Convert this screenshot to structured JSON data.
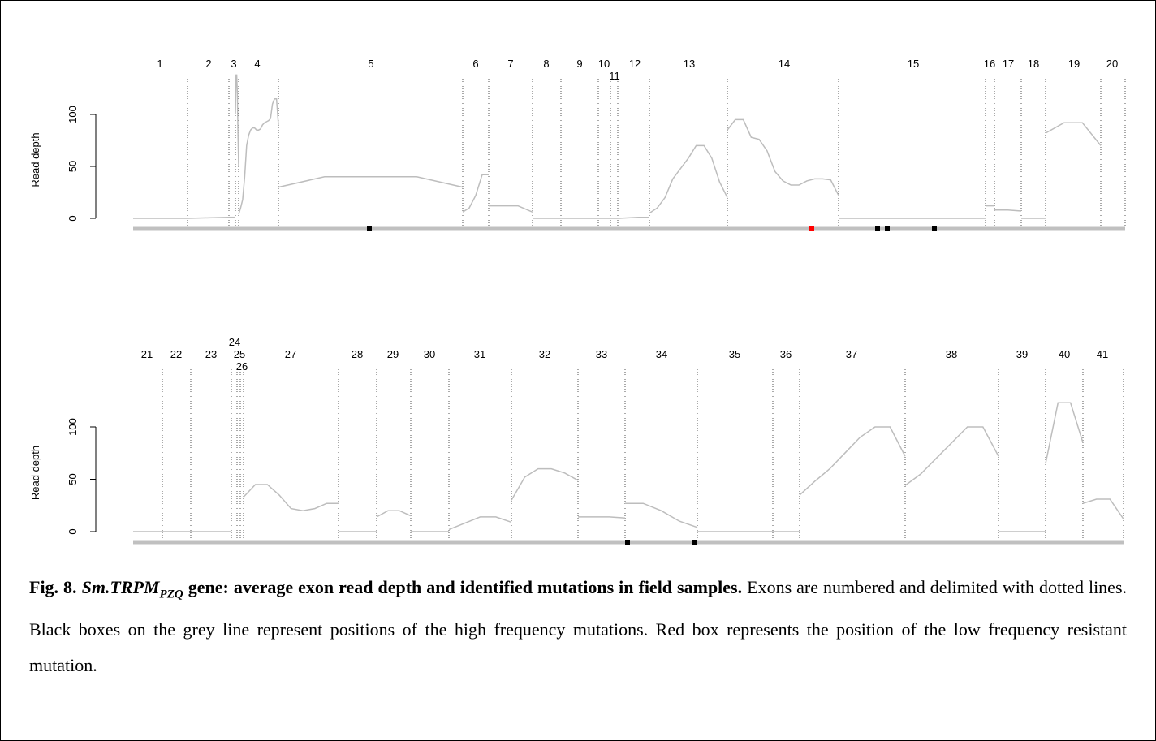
{
  "chart_data": [
    {
      "type": "line",
      "ylabel": "Read depth",
      "ylim": [
        0,
        140
      ],
      "yticks": [
        0,
        50,
        100
      ],
      "grid": false,
      "exons": [
        "1",
        "2",
        "3",
        "4",
        "5",
        "6",
        "7",
        "8",
        "9",
        "10",
        "11",
        "12",
        "13",
        "14",
        "15",
        "16",
        "17",
        "18",
        "19",
        "20"
      ],
      "depth_profile": [
        {
          "exon": "1",
          "points": [
            0,
            0,
            0
          ]
        },
        {
          "exon": "2",
          "points": [
            0,
            0.5,
            1
          ]
        },
        {
          "exon": "3",
          "points": [
            1,
            1
          ]
        },
        {
          "exon": "4",
          "points": [
            100,
            138,
            138,
            120,
            80,
            50
          ]
        },
        {
          "exon": "5",
          "points": [
            4,
            10,
            18,
            40,
            70,
            80,
            85,
            87,
            87,
            85,
            85,
            86,
            90,
            92,
            93,
            94,
            96,
            110,
            115,
            115,
            90
          ]
        },
        {
          "exon": "6",
          "points": [
            30,
            40,
            40,
            40,
            30
          ]
        },
        {
          "exon": "7",
          "points": [
            6,
            10,
            22,
            42,
            42
          ]
        },
        {
          "exon": "8",
          "points": [
            12,
            12,
            12,
            6
          ]
        },
        {
          "exon": "9",
          "points": [
            0,
            0,
            0
          ]
        },
        {
          "exon": "10",
          "points": [
            0,
            0
          ]
        },
        {
          "exon": "11",
          "points": [
            0,
            0
          ]
        },
        {
          "exon": "12",
          "points": [
            0,
            0
          ]
        },
        {
          "exon": "13",
          "points": [
            0,
            0.5,
            1,
            1
          ]
        },
        {
          "exon": "14",
          "points": [
            5,
            10,
            20,
            38,
            48,
            58,
            70,
            70,
            58,
            35,
            20
          ]
        },
        {
          "exon": "15",
          "points": [
            85,
            95,
            95,
            78,
            76,
            65,
            45,
            36,
            32,
            32,
            36,
            38,
            38,
            37,
            22
          ]
        },
        {
          "exon": "16",
          "points": [
            0,
            0
          ]
        },
        {
          "exon": "17",
          "points": [
            12,
            12,
            12
          ]
        },
        {
          "exon": "18",
          "points": [
            8,
            8,
            7
          ]
        },
        {
          "exon": "19",
          "points": [
            0,
            0,
            0
          ]
        },
        {
          "exon": "20",
          "points": [
            82,
            92,
            92,
            70
          ]
        }
      ],
      "mutations": [
        {
          "exon": "5",
          "frequency": "high",
          "color": "#000000"
        },
        {
          "exon": "14",
          "frequency": "low",
          "color": "#ff0000"
        },
        {
          "exon": "15",
          "frequency": "high",
          "color": "#000000"
        },
        {
          "exon": "15",
          "frequency": "high",
          "color": "#000000"
        },
        {
          "exon": "15",
          "frequency": "high",
          "color": "#000000"
        }
      ]
    },
    {
      "type": "line",
      "ylabel": "Read depth",
      "ylim": [
        0,
        140
      ],
      "yticks": [
        0,
        50,
        100
      ],
      "grid": false,
      "exons": [
        "21",
        "22",
        "23",
        "24",
        "25",
        "26",
        "27",
        "28",
        "29",
        "30",
        "31",
        "32",
        "33",
        "34",
        "35",
        "36",
        "37",
        "38",
        "39",
        "40",
        "41"
      ],
      "depth_profile": [
        {
          "exon": "21",
          "points": [
            0,
            0
          ]
        },
        {
          "exon": "22",
          "points": [
            0,
            0
          ]
        },
        {
          "exon": "23",
          "points": [
            0,
            0,
            0
          ]
        },
        {
          "exon": "27",
          "points": [
            33,
            45,
            45,
            35,
            22,
            20,
            22,
            27,
            27
          ]
        },
        {
          "exon": "28",
          "points": [
            0,
            0,
            0
          ]
        },
        {
          "exon": "29",
          "points": [
            14,
            20,
            20,
            15
          ]
        },
        {
          "exon": "30",
          "points": [
            0,
            0,
            0
          ]
        },
        {
          "exon": "31",
          "points": [
            2,
            8,
            14,
            14,
            9
          ]
        },
        {
          "exon": "32",
          "points": [
            30,
            52,
            60,
            60,
            56,
            49
          ]
        },
        {
          "exon": "33",
          "points": [
            14,
            14,
            14,
            13
          ]
        },
        {
          "exon": "34",
          "points": [
            27,
            27,
            20,
            10,
            4
          ]
        },
        {
          "exon": "35",
          "points": [
            0,
            0,
            0
          ]
        },
        {
          "exon": "36",
          "points": [
            0,
            0
          ]
        },
        {
          "exon": "37",
          "points": [
            35,
            48,
            60,
            75,
            90,
            100,
            100,
            72
          ]
        },
        {
          "exon": "38",
          "points": [
            44,
            55,
            70,
            85,
            100,
            100,
            72
          ]
        },
        {
          "exon": "39",
          "points": [
            0,
            0,
            0
          ]
        },
        {
          "exon": "40",
          "points": [
            65,
            123,
            123,
            85
          ]
        },
        {
          "exon": "41",
          "points": [
            27,
            31,
            31,
            12
          ]
        }
      ],
      "mutations": [
        {
          "exon": "34",
          "frequency": "high",
          "color": "#000000"
        },
        {
          "exon": "34",
          "frequency": "high",
          "color": "#000000"
        }
      ]
    }
  ],
  "caption": {
    "fig_label": "Fig. 8.",
    "gene_name": "Sm.TRPM",
    "gene_sub": "PZQ",
    "title_rest": " gene: average exon read depth and identified mutations in field samples.",
    "body": " Exons are numbered and delimited with dotted lines. Black boxes on the grey line represent positions of the high frequency mutations. Red box represents the position of the low frequency resistant mutation."
  },
  "colors": {
    "profile": "#bdbdbd",
    "baseline": "#c0c0c0",
    "high_mutation": "#000000",
    "low_mutation": "#ff0000",
    "divider": "#555555"
  }
}
